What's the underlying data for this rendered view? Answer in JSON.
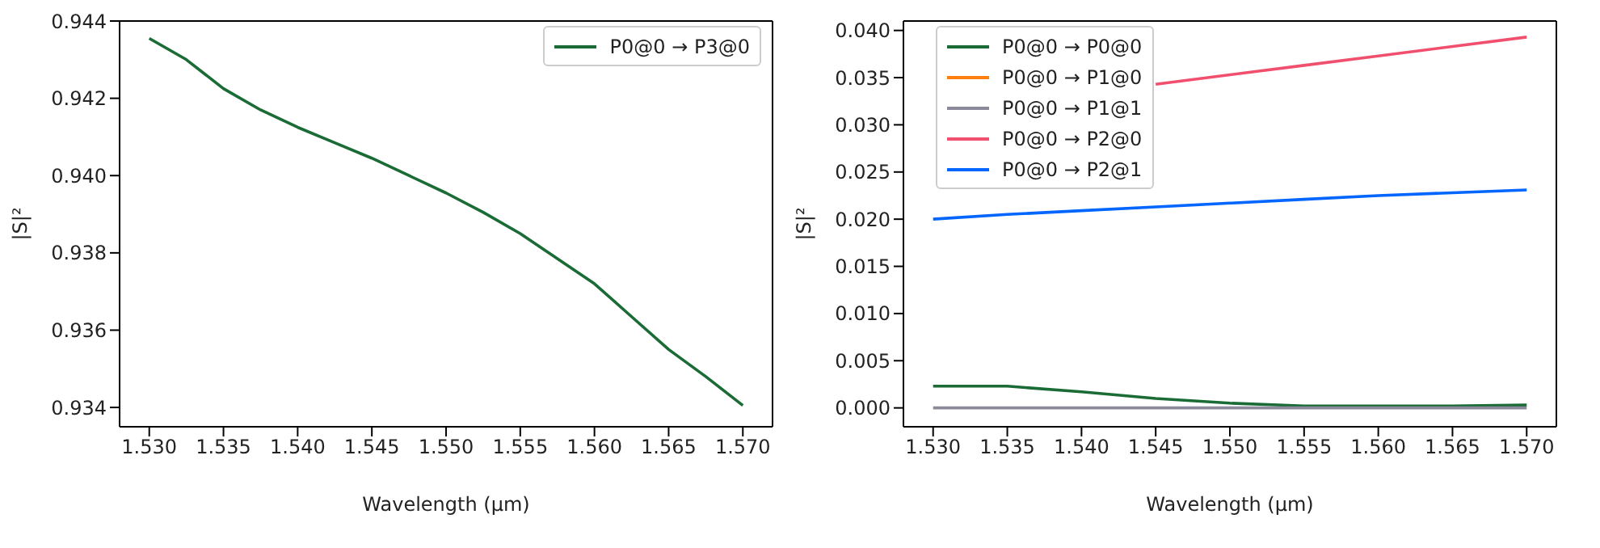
{
  "chart_data": [
    {
      "type": "line",
      "xlabel": "Wavelength (µm)",
      "ylabel": "|S|²",
      "legend": "top right",
      "grid": false,
      "x": [
        1.53,
        1.5325,
        1.535,
        1.5375,
        1.54,
        1.5425,
        1.545,
        1.5475,
        1.55,
        1.5525,
        1.555,
        1.5575,
        1.56,
        1.5625,
        1.565,
        1.5675,
        1.57
      ],
      "xlim": [
        1.528,
        1.572
      ],
      "xticks": [
        {
          "value": 1.53,
          "label": "1.530"
        },
        {
          "value": 1.535,
          "label": "1.535"
        },
        {
          "value": 1.54,
          "label": "1.540"
        },
        {
          "value": 1.545,
          "label": "1.545"
        },
        {
          "value": 1.55,
          "label": "1.550"
        },
        {
          "value": 1.555,
          "label": "1.555"
        },
        {
          "value": 1.56,
          "label": "1.560"
        },
        {
          "value": 1.565,
          "label": "1.565"
        },
        {
          "value": 1.57,
          "label": "1.570"
        }
      ],
      "ylim": [
        0.9335,
        0.944
      ],
      "yticks": [
        0.934,
        0.936,
        0.938,
        {
          "value": 0.94,
          "label": "0.940"
        },
        0.942,
        0.944
      ],
      "series": [
        {
          "name": "P0@0 → P3@0",
          "color": "#1a6b35",
          "values": [
            0.94355,
            0.943,
            0.94225,
            0.9417,
            0.94125,
            0.94085,
            0.94045,
            0.94,
            0.93955,
            0.93905,
            0.9385,
            0.93785,
            0.9372,
            0.93635,
            0.9355,
            0.9348,
            0.93405
          ]
        }
      ]
    },
    {
      "type": "line",
      "xlabel": "Wavelength (µm)",
      "ylabel": "|S|²",
      "legend": "top left",
      "grid": false,
      "x": [
        1.53,
        1.535,
        1.54,
        1.545,
        1.55,
        1.555,
        1.56,
        1.565,
        1.57
      ],
      "xlim": [
        1.528,
        1.572
      ],
      "xticks": [
        {
          "value": 1.53,
          "label": "1.530"
        },
        {
          "value": 1.535,
          "label": "1.535"
        },
        {
          "value": 1.54,
          "label": "1.540"
        },
        {
          "value": 1.545,
          "label": "1.545"
        },
        {
          "value": 1.55,
          "label": "1.550"
        },
        {
          "value": 1.555,
          "label": "1.555"
        },
        {
          "value": 1.56,
          "label": "1.560"
        },
        {
          "value": 1.565,
          "label": "1.565"
        },
        {
          "value": 1.57,
          "label": "1.570"
        }
      ],
      "ylim": [
        -0.002,
        0.041
      ],
      "yticks": [
        {
          "value": 0,
          "label": "0.000"
        },
        0.005,
        {
          "value": 0.01,
          "label": "0.010"
        },
        0.015,
        {
          "value": 0.02,
          "label": "0.020"
        },
        0.025,
        {
          "value": 0.03,
          "label": "0.030"
        },
        0.035,
        {
          "value": 0.04,
          "label": "0.040"
        }
      ],
      "series": [
        {
          "name": "P0@0 → P0@0",
          "color": "#1a6b35",
          "values": [
            0.0023,
            0.0023,
            0.0017,
            0.001,
            0.0005,
            0.0002,
            0.0002,
            0.0002,
            0.0003
          ]
        },
        {
          "name": "P0@0 → P1@0",
          "color": "#ff7f0e",
          "values": [
            null,
            null,
            null,
            null,
            null,
            null,
            null,
            null,
            null
          ]
        },
        {
          "name": "P0@0 → P1@1",
          "color": "#8a8a9a",
          "values": [
            0,
            0,
            0,
            0,
            0,
            0,
            0,
            0,
            0
          ]
        },
        {
          "name": "P0@0 → P2@0",
          "color": "#f0506e",
          "values": [
            null,
            null,
            null,
            0.0343,
            0.0353,
            0.0363,
            0.0373,
            0.0383,
            0.0393
          ]
        },
        {
          "name": "P0@0 → P2@1",
          "color": "#0066ff",
          "values": [
            0.02,
            0.0205,
            0.0209,
            0.0213,
            0.0217,
            0.0221,
            0.0225,
            0.0228,
            0.0231
          ]
        }
      ]
    }
  ]
}
